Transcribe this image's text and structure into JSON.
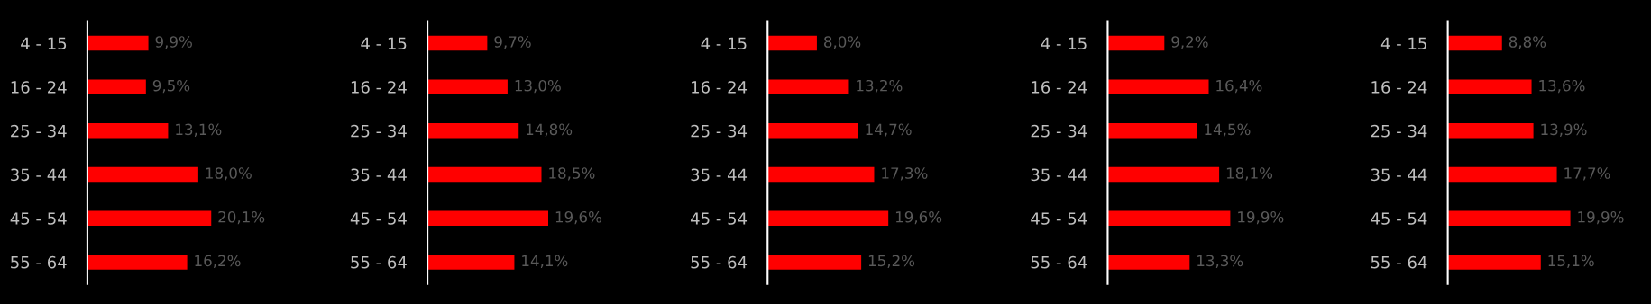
{
  "chart_data": [
    {
      "type": "bar",
      "orientation": "horizontal",
      "categories": [
        "4 - 15",
        "16 - 24",
        "25 - 34",
        "35 - 44",
        "45 - 54",
        "55 - 64"
      ],
      "values": [
        9.9,
        9.5,
        13.1,
        18.0,
        20.1,
        16.2
      ],
      "value_labels": [
        "9,9%",
        "9,5%",
        "13,1%",
        "18,0%",
        "20,1%",
        "16,2%"
      ],
      "color": "#ff0000"
    },
    {
      "type": "bar",
      "orientation": "horizontal",
      "categories": [
        "4 - 15",
        "16 - 24",
        "25 - 34",
        "35 - 44",
        "45 - 54",
        "55 - 64"
      ],
      "values": [
        9.7,
        13.0,
        14.8,
        18.5,
        19.6,
        14.1
      ],
      "value_labels": [
        "9,7%",
        "13,0%",
        "14,8%",
        "18,5%",
        "19,6%",
        "14,1%"
      ],
      "color": "#ff0000"
    },
    {
      "type": "bar",
      "orientation": "horizontal",
      "categories": [
        "4 - 15",
        "16 - 24",
        "25 - 34",
        "35 - 44",
        "45 - 54",
        "55 - 64"
      ],
      "values": [
        8.0,
        13.2,
        14.7,
        17.3,
        19.6,
        15.2
      ],
      "value_labels": [
        "8,0%",
        "13,2%",
        "14,7%",
        "17,3%",
        "19,6%",
        "15,2%"
      ],
      "color": "#ff0000"
    },
    {
      "type": "bar",
      "orientation": "horizontal",
      "categories": [
        "4 - 15",
        "16 - 24",
        "25 - 34",
        "35 - 44",
        "45 - 54",
        "55 - 64"
      ],
      "values": [
        9.2,
        16.4,
        14.5,
        18.1,
        19.9,
        13.3
      ],
      "value_labels": [
        "9,2%",
        "16,4%",
        "14,5%",
        "18,1%",
        "19,9%",
        "13,3%"
      ],
      "color": "#ff0000"
    },
    {
      "type": "bar",
      "orientation": "horizontal",
      "categories": [
        "4 - 15",
        "16 - 24",
        "25 - 34",
        "35 - 44",
        "45 - 54",
        "55 - 64"
      ],
      "values": [
        8.8,
        13.6,
        13.9,
        17.7,
        19.9,
        15.1
      ],
      "value_labels": [
        "8,8%",
        "13,6%",
        "13,9%",
        "17,7%",
        "19,9%",
        "15,1%"
      ],
      "color": "#ff0000"
    }
  ]
}
